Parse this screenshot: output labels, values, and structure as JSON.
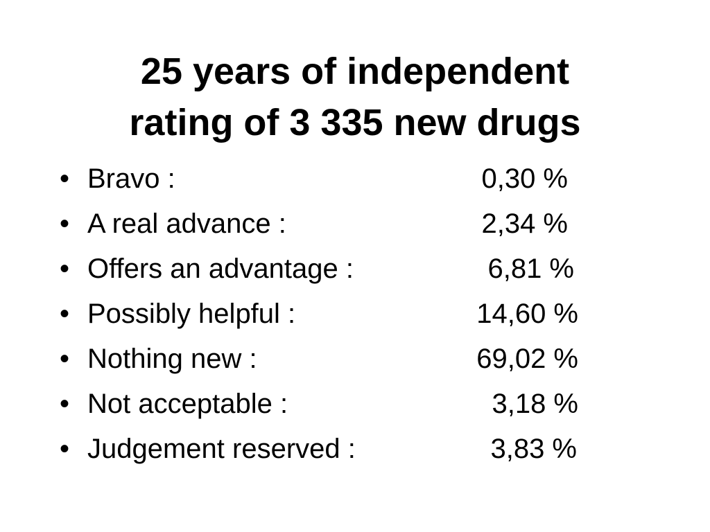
{
  "title": {
    "line1": "25 years of independent",
    "line2": "rating of 3 335 new drugs"
  },
  "items": [
    {
      "label": "Bravo :",
      "value": "0,30 %"
    },
    {
      "label": "A real advance :",
      "value": "2,34 %"
    },
    {
      "label": "Offers an advantage :",
      "value": "6,81 %"
    },
    {
      "label": "Possibly helpful :",
      "value": "14,60 %"
    },
    {
      "label": "Nothing new :",
      "value": "69,02 %"
    },
    {
      "label": "Not acceptable :",
      "value": "3,18 %"
    },
    {
      "label": "Judgement reserved :",
      "value": "3,83 %"
    }
  ],
  "bullet_glyph": "•"
}
